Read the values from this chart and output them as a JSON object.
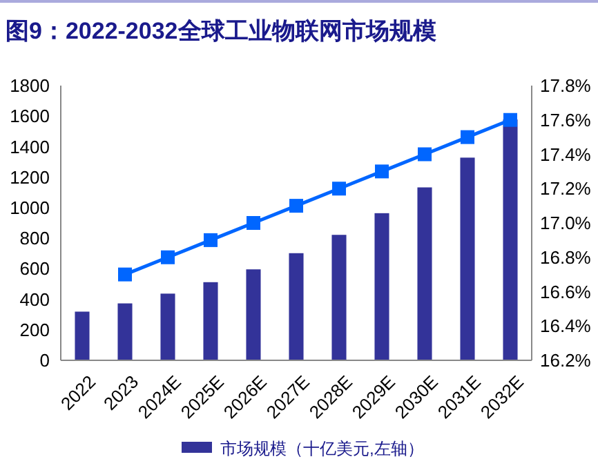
{
  "chart_data": {
    "type": "bar",
    "title": "图9：2022-2032全球工业物联网市场规模",
    "categories": [
      "2022",
      "2023",
      "2024E",
      "2025E",
      "2026E",
      "2027E",
      "2028E",
      "2029E",
      "2030E",
      "2031E",
      "2032E"
    ],
    "series": [
      {
        "name": "市场规模（十亿美元,左轴）",
        "color": "#333399",
        "values": [
          319,
          373,
          437,
          512,
          596,
          702,
          822,
          964,
          1133,
          1328,
          1578
        ]
      },
      {
        "type": "line",
        "axis": "y2",
        "color": "#0066ff",
        "marker": "square",
        "values": [
          null,
          16.7,
          16.8,
          16.9,
          17.0,
          17.1,
          17.2,
          17.3,
          17.4,
          17.5,
          17.6
        ]
      }
    ],
    "ylim": [
      0,
      1800
    ],
    "yticks": [
      0,
      200,
      400,
      600,
      800,
      1000,
      1200,
      1400,
      1600,
      1800
    ],
    "y2lim": [
      16.2,
      17.8
    ],
    "y2ticks": [
      {
        "value": 16.2,
        "label": "16.2%"
      },
      {
        "value": 16.4,
        "label": "16.4%"
      },
      {
        "value": 16.6,
        "label": "16.6%"
      },
      {
        "value": 16.8,
        "label": "16.8%"
      },
      {
        "value": 17.0,
        "label": "17.0%"
      },
      {
        "value": 17.2,
        "label": "17.2%"
      },
      {
        "value": 17.4,
        "label": "17.4%"
      },
      {
        "value": 17.6,
        "label": "17.6%"
      },
      {
        "value": 17.8,
        "label": "17.8%"
      }
    ],
    "legend": "bottom",
    "grid": false
  }
}
